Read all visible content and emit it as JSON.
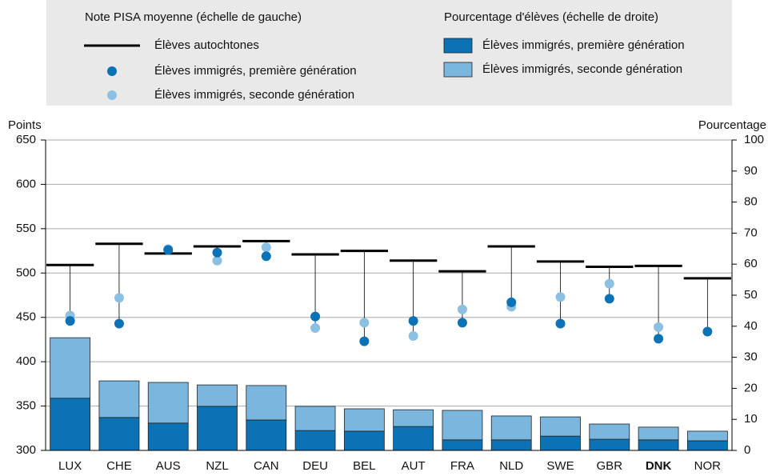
{
  "chart_data": {
    "type": "bar_dot",
    "legend": {
      "left_heading": "Note PISA moyenne (échelle de gauche)",
      "right_heading": "Pourcentage d'élèves (échelle de droite)"
    },
    "ylabel": "Points",
    "y2label": "Pourcentage",
    "categories": [
      "LUX",
      "CHE",
      "AUS",
      "NZL",
      "CAN",
      "DEU",
      "BEL",
      "AUT",
      "FRA",
      "NLD",
      "SWE",
      "GBR",
      "DNK",
      "NOR"
    ],
    "highlight_index": 12,
    "ylim": [
      300,
      650
    ],
    "yticks": [
      300,
      350,
      400,
      450,
      500,
      550,
      600,
      650
    ],
    "y2lim": [
      0,
      100
    ],
    "y2ticks": [
      0,
      10,
      20,
      30,
      40,
      50,
      60,
      70,
      80,
      90,
      100
    ],
    "grid": true,
    "bar_series": [
      {
        "name": "Élèves immigrés, première génération",
        "color": "#0a72b5",
        "axis": "y2",
        "values": [
          16.8,
          10.6,
          8.8,
          14.2,
          9.8,
          6.4,
          6.2,
          7.7,
          3.4,
          3.4,
          4.6,
          3.6,
          3.4,
          3.1
        ]
      },
      {
        "name": "Élèves immigrés, seconde génération",
        "color": "#7ab6dd",
        "axis": "y2",
        "values": [
          19.5,
          11.8,
          13.1,
          6.9,
          11.1,
          7.8,
          7.2,
          5.4,
          9.5,
          7.7,
          6.2,
          4.9,
          4.1,
          3.1
        ]
      }
    ],
    "line_series": {
      "name": "Élèves autochtones",
      "color": "#000000",
      "values": [
        509,
        533,
        522,
        530,
        536,
        521,
        525,
        514,
        502,
        530,
        513,
        507,
        508,
        494
      ]
    },
    "dot_series": [
      {
        "name": "Élèves immigrés, première génération",
        "color": "#0a72b5",
        "values": [
          446,
          443,
          526,
          523,
          519,
          451,
          423,
          446,
          444,
          467,
          443,
          471,
          426,
          434
        ]
      },
      {
        "name": "Élèves immigrés, seconde génération",
        "color": "#8cc0e2",
        "values": [
          452,
          472,
          527,
          514,
          529,
          438,
          444,
          429,
          459,
          462,
          473,
          488,
          439,
          null
        ]
      }
    ]
  }
}
